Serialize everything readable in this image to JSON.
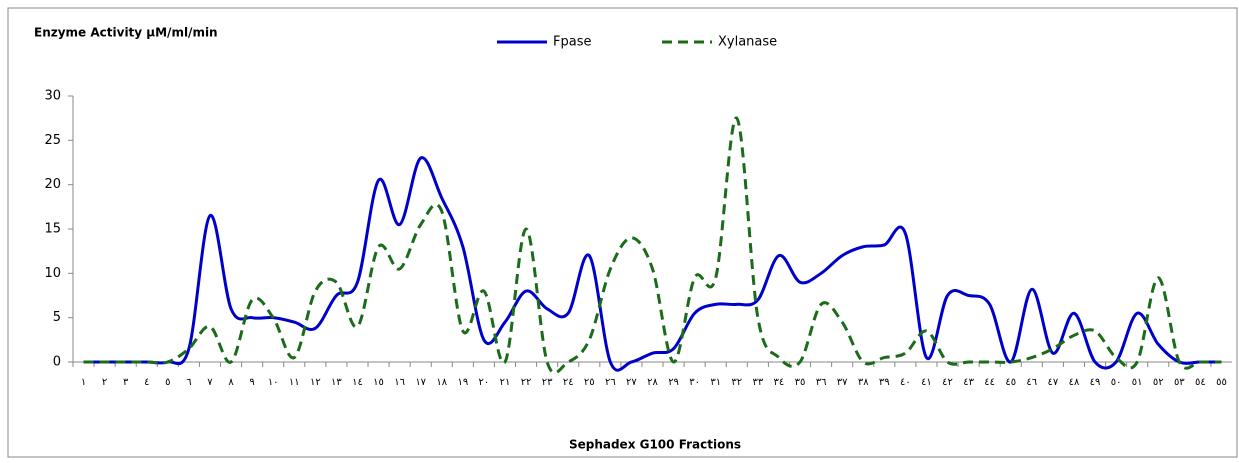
{
  "chart_data": {
    "type": "line",
    "title": "Enzyme Activity µM/ml/min",
    "x_label": "Sephadex G100 Fractions",
    "categories": [
      "١",
      "٢",
      "٣",
      "٤",
      "٥",
      "٦",
      "٧",
      "٨",
      "٩",
      "١٠",
      "١١",
      "١٢",
      "١٣",
      "١٤",
      "١٥",
      "١٦",
      "١٧",
      "١٨",
      "١٩",
      "٢٠",
      "٢١",
      "٢٢",
      "٢٣",
      "٢٤",
      "٢٥",
      "٢٦",
      "٢٧",
      "٢٨",
      "٢٩",
      "٣٠",
      "٣١",
      "٣٢",
      "٣٣",
      "٣٤",
      "٣٥",
      "٣٦",
      "٣٧",
      "٣٨",
      "٣٩",
      "٤٠",
      "٤١",
      "٤٢",
      "٤٣",
      "٤٤",
      "٤٥",
      "٤٦",
      "٤٧",
      "٤٨",
      "٤٩",
      "٥٠",
      "٥١",
      "٥٢",
      "٥٣",
      "٥٤",
      "٥٥"
    ],
    "series": [
      {
        "name": "Fpase",
        "color": "#0000cc",
        "dashed": false,
        "values": [
          0,
          0,
          0,
          0,
          0,
          1.5,
          16.5,
          6,
          5,
          5,
          4.5,
          3.8,
          7.5,
          9,
          20.5,
          15.5,
          23,
          18.5,
          13,
          2.5,
          4.5,
          8,
          6,
          5.5,
          12,
          0,
          0,
          1,
          1.5,
          5.5,
          6.5,
          6.5,
          7,
          12,
          9,
          10,
          12,
          13,
          13.2,
          14.5,
          0.5,
          7.5,
          7.5,
          6.5,
          0,
          8.2,
          1,
          5.5,
          0,
          0,
          5.5,
          2,
          0,
          0,
          0
        ]
      },
      {
        "name": "Xylanase",
        "color": "#1a6b1a",
        "dashed": true,
        "values": [
          0,
          0,
          0,
          0,
          0,
          1.5,
          4,
          0,
          7,
          5,
          0.5,
          8,
          9,
          4,
          13,
          10.5,
          15.5,
          17,
          3.5,
          8,
          0,
          15,
          0,
          0,
          2.5,
          10.5,
          14,
          10.5,
          0,
          9.5,
          9.5,
          27.5,
          5,
          0.5,
          0,
          6.5,
          4.5,
          0,
          0.5,
          1,
          3.5,
          0,
          0,
          0,
          0,
          0.5,
          1.5,
          3,
          3.5,
          0.5,
          0,
          9.5,
          0,
          0,
          0
        ]
      }
    ],
    "ylim": [
      0,
      30
    ],
    "yticks": [
      0,
      5,
      10,
      15,
      20,
      25,
      30
    ],
    "grid": false,
    "legend": "top"
  }
}
